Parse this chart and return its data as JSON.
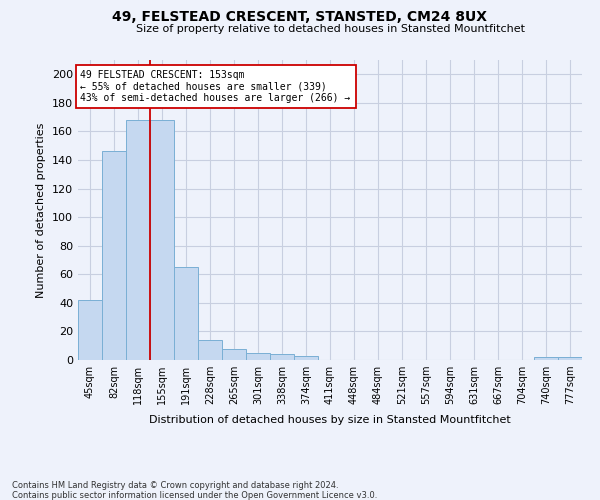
{
  "title": "49, FELSTEAD CRESCENT, STANSTED, CM24 8UX",
  "subtitle": "Size of property relative to detached houses in Stansted Mountfitchet",
  "xlabel": "Distribution of detached houses by size in Stansted Mountfitchet",
  "ylabel": "Number of detached properties",
  "bar_labels": [
    "45sqm",
    "82sqm",
    "118sqm",
    "155sqm",
    "191sqm",
    "228sqm",
    "265sqm",
    "301sqm",
    "338sqm",
    "374sqm",
    "411sqm",
    "448sqm",
    "484sqm",
    "521sqm",
    "557sqm",
    "594sqm",
    "631sqm",
    "667sqm",
    "704sqm",
    "740sqm",
    "777sqm"
  ],
  "bar_values": [
    42,
    146,
    168,
    168,
    65,
    14,
    8,
    5,
    4,
    3,
    0,
    0,
    0,
    0,
    0,
    0,
    0,
    0,
    0,
    2,
    2
  ],
  "bar_color": "#c5d8f0",
  "bar_edge_color": "#7aafd4",
  "ylim": [
    0,
    210
  ],
  "yticks": [
    0,
    20,
    40,
    60,
    80,
    100,
    120,
    140,
    160,
    180,
    200
  ],
  "vline_x": 2.5,
  "annotation_title": "49 FELSTEAD CRESCENT: 153sqm",
  "annotation_line1": "← 55% of detached houses are smaller (339)",
  "annotation_line2": "43% of semi-detached houses are larger (266) →",
  "footer1": "Contains HM Land Registry data © Crown copyright and database right 2024.",
  "footer2": "Contains public sector information licensed under the Open Government Licence v3.0.",
  "background_color": "#eef2fb",
  "plot_bg_color": "#eef2fb",
  "grid_color": "#c8cfe0"
}
